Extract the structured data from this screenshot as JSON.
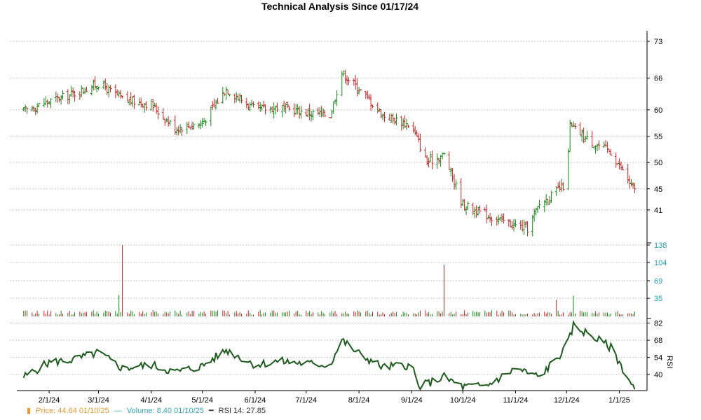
{
  "title": "Technical Analysis Since 01/17/24",
  "legend": {
    "price_label": "Price: 44.64  01/10/25",
    "volume_label": "Volume: 8.40  01/10/25",
    "rsi_label": "RSI 14: 27.85"
  },
  "colors": {
    "up": "#1c8a1c",
    "down": "#c42a2a",
    "rsi_line": "#1f5a1f",
    "grid": "#c8c8c8",
    "price_axis_text": "#000000",
    "volume_axis_text": "#2a9fb0",
    "rsi_axis_text": "#000000",
    "legend_price": "#e39b3a",
    "legend_volume": "#3aa6b4"
  },
  "chart_data": [
    {
      "type": "ohlc",
      "panel": "price",
      "title": "Technical Analysis Since 01/17/24",
      "x_ticks": [
        "2/1/24",
        "3/1/24",
        "4/1/24",
        "5/1/24",
        "6/1/24",
        "7/1/24",
        "8/1/24",
        "9/1/24",
        "10/1/24",
        "11/1/24",
        "12/1/24",
        "1/1/25"
      ],
      "y_ticks": [
        73,
        66,
        60,
        55,
        50,
        45,
        41
      ],
      "ylim": [
        35,
        75
      ],
      "last_price": 44.64,
      "last_date": "01/10/25",
      "x": [
        "01/17/24",
        "01/31/24",
        "02/15/24",
        "03/01/24",
        "03/15/24",
        "04/01/24",
        "04/15/24",
        "05/01/24",
        "05/15/24",
        "06/01/24",
        "06/15/24",
        "07/01/24",
        "07/15/24",
        "07/22/24",
        "08/01/24",
        "08/15/24",
        "09/01/24",
        "09/10/24",
        "09/20/24",
        "10/01/24",
        "10/15/24",
        "11/01/24",
        "11/08/24",
        "11/15/24",
        "12/01/24",
        "12/03/24",
        "12/15/24",
        "12/27/24",
        "01/10/25"
      ],
      "close": [
        59.8,
        61.5,
        63.0,
        65.0,
        62.0,
        61.0,
        56.5,
        57.5,
        64.0,
        60.0,
        60.5,
        59.5,
        59.0,
        67.0,
        64.0,
        59.0,
        57.0,
        50.0,
        51.5,
        42.0,
        40.0,
        38.0,
        37.5,
        42.0,
        46.0,
        57.0,
        54.0,
        52.0,
        44.64
      ]
    },
    {
      "type": "bar",
      "panel": "volume",
      "name": "Volume",
      "y_ticks": [
        138,
        104,
        69,
        35
      ],
      "ylim": [
        0,
        138
      ],
      "last_value": 8.4,
      "last_date": "01/10/25",
      "spikes": [
        {
          "date": "03/15/24",
          "value": 138
        },
        {
          "date": "03/13/24",
          "value": 42
        },
        {
          "date": "09/01/24",
          "value": 48
        },
        {
          "date": "09/20/24",
          "value": 100
        },
        {
          "date": "06/15/24",
          "value": 30
        },
        {
          "date": "11/25/24",
          "value": 32
        },
        {
          "date": "12/05/24",
          "value": 40
        },
        {
          "date": "12/15/24",
          "value": 30
        }
      ]
    },
    {
      "type": "line",
      "panel": "rsi",
      "name": "RSI 14",
      "ylabel": "RSI",
      "y_ticks": [
        82,
        68,
        54,
        40
      ],
      "ylim": [
        27,
        84
      ],
      "last_value": 27.85,
      "x": [
        "01/17/24",
        "02/01/24",
        "02/15/24",
        "03/01/24",
        "03/15/24",
        "04/01/24",
        "04/15/24",
        "05/01/24",
        "05/15/24",
        "06/01/24",
        "06/15/24",
        "07/01/24",
        "07/15/24",
        "07/22/24",
        "08/01/24",
        "08/15/24",
        "09/01/24",
        "09/05/24",
        "09/20/24",
        "10/01/24",
        "10/15/24",
        "11/01/24",
        "11/15/24",
        "12/01/24",
        "12/05/24",
        "12/15/24",
        "12/27/24",
        "01/10/25"
      ],
      "values": [
        38,
        50,
        52,
        58,
        45,
        48,
        42,
        47,
        60,
        48,
        51,
        49,
        48,
        68,
        57,
        46,
        48,
        30,
        38,
        30,
        31,
        45,
        38,
        62,
        80,
        72,
        62,
        27.85
      ]
    }
  ]
}
